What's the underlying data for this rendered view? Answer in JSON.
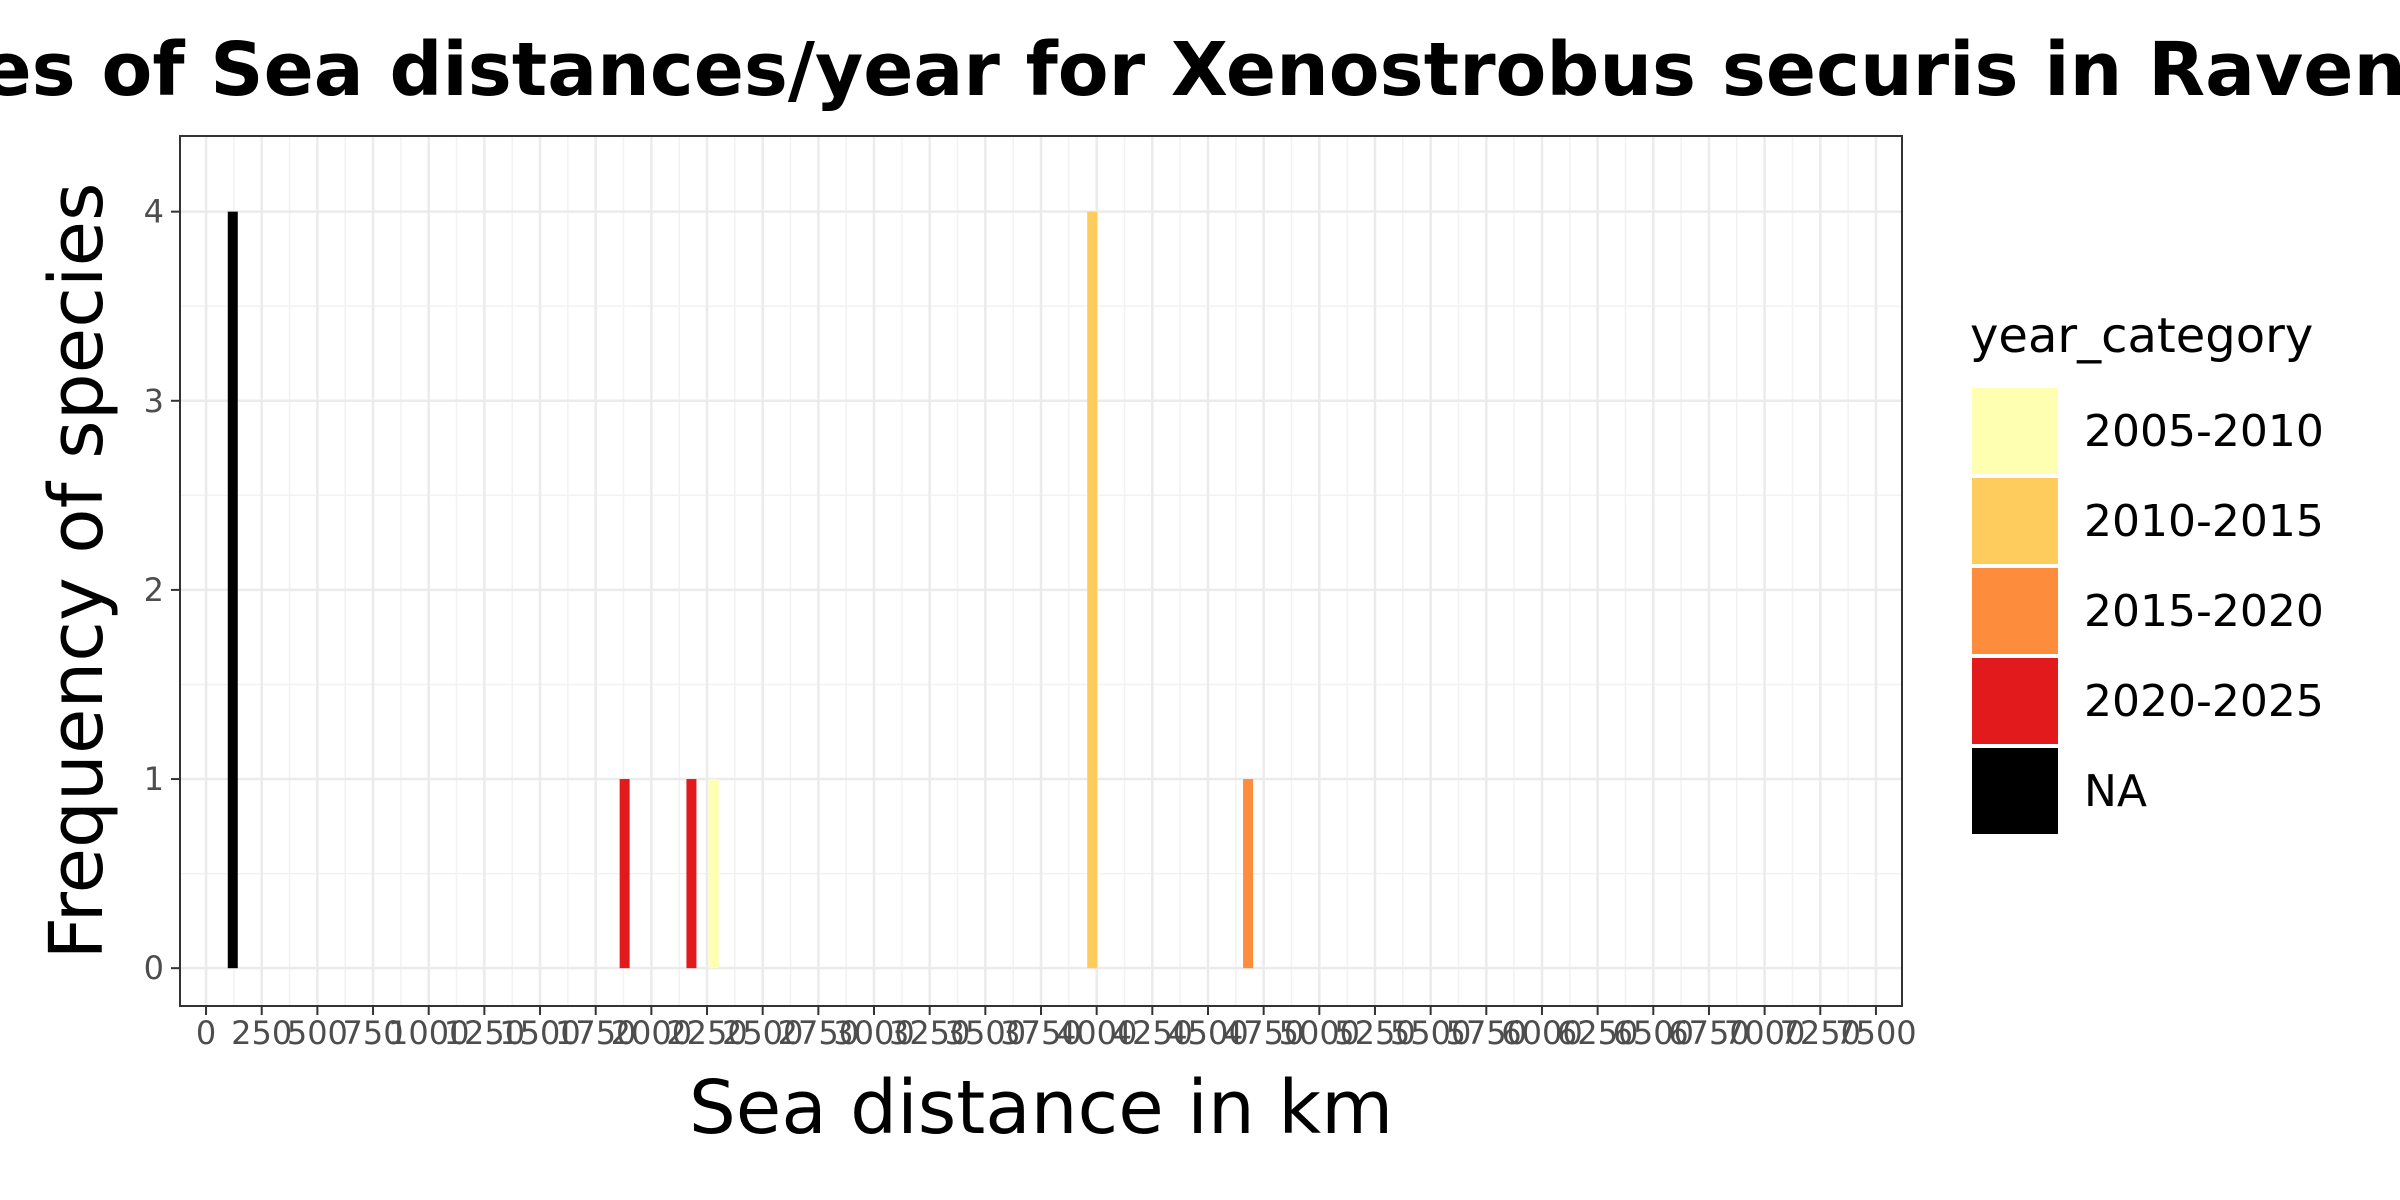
{
  "chart_data": {
    "type": "bar",
    "title": "Frequencies of Sea distances/year for Xenostrobus securis in Ravenna",
    "xlabel": "Sea distance in km",
    "ylabel": "Frequency of species",
    "xlim": [
      0,
      7500
    ],
    "ylim": [
      0,
      4
    ],
    "x_ticks": [
      0,
      250,
      500,
      750,
      1000,
      1250,
      1500,
      1750,
      2000,
      2250,
      2500,
      2750,
      3000,
      3250,
      3500,
      3750,
      4000,
      4250,
      4500,
      4750,
      5000,
      5250,
      5500,
      5750,
      6000,
      6250,
      6500,
      6750,
      7000,
      7250,
      7500
    ],
    "y_ticks": [
      0,
      1,
      2,
      3,
      4
    ],
    "grid": true,
    "legend_title": "year_category",
    "legend_position": "right",
    "categories": [
      "2005-2010",
      "2010-2015",
      "2015-2020",
      "2020-2025",
      "NA"
    ],
    "colors": {
      "2005-2010": "#FFFFB2",
      "2010-2015": "#FECC5C",
      "2015-2020": "#FD8D3C",
      "2020-2025": "#E31A1C",
      "NA": "#000000"
    },
    "bars": [
      {
        "x": 120,
        "count": 4,
        "category": "NA"
      },
      {
        "x": 1880,
        "count": 1,
        "category": "2020-2025"
      },
      {
        "x": 2180,
        "count": 1,
        "category": "2020-2025"
      },
      {
        "x": 2280,
        "count": 1,
        "category": "2005-2010"
      },
      {
        "x": 3980,
        "count": 4,
        "category": "2010-2015"
      },
      {
        "x": 4680,
        "count": 1,
        "category": "2015-2020"
      }
    ]
  }
}
